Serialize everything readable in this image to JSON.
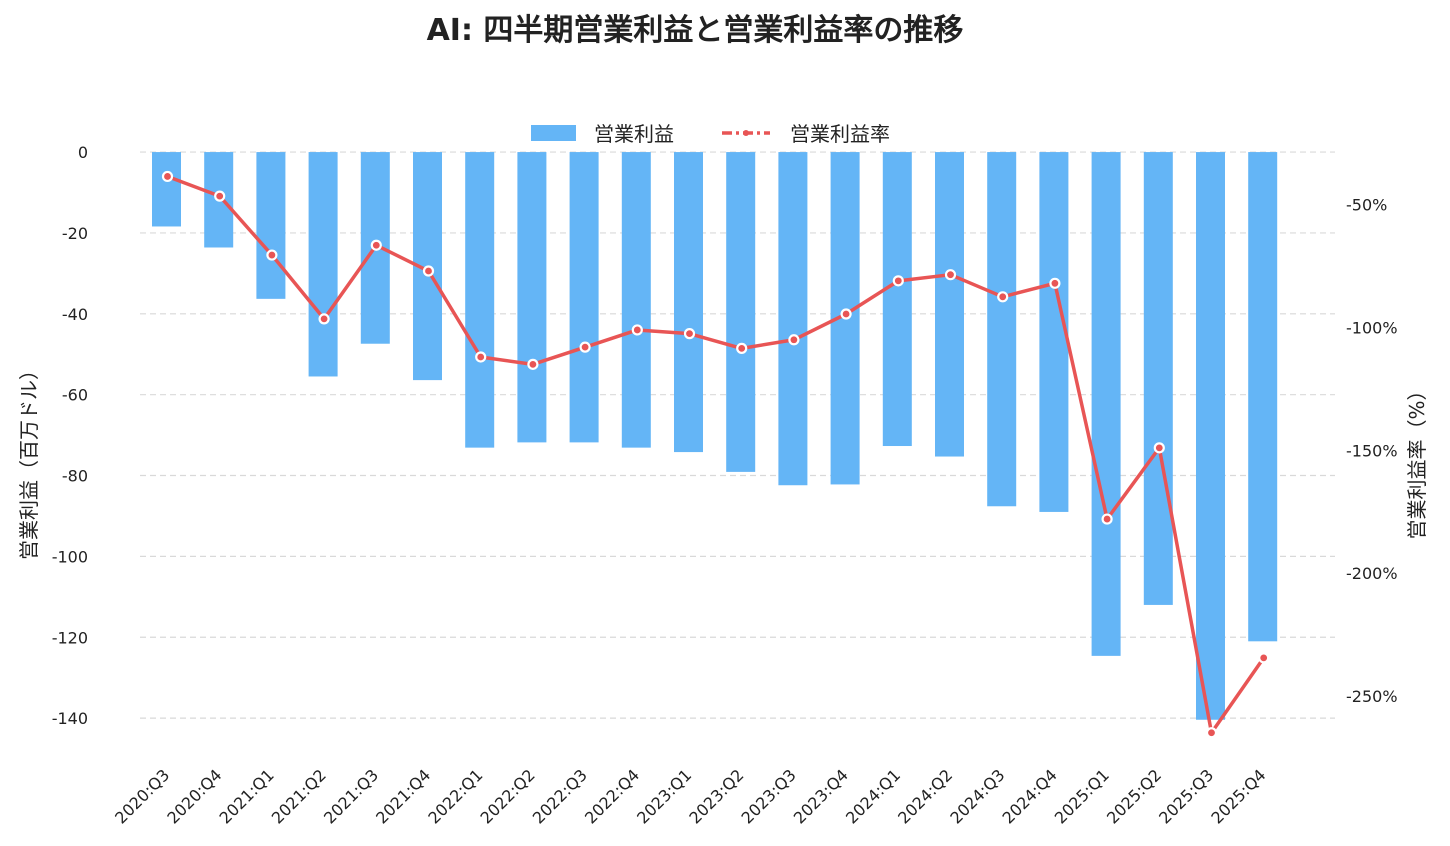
{
  "chart_data": {
    "type": "bar+line",
    "title": "AI: 四半期営業利益と営業利益率の推移",
    "categories": [
      "2020:Q3",
      "2020:Q4",
      "2021:Q1",
      "2021:Q2",
      "2021:Q3",
      "2021:Q4",
      "2022:Q1",
      "2022:Q2",
      "2022:Q3",
      "2022:Q4",
      "2023:Q1",
      "2023:Q2",
      "2023:Q3",
      "2023:Q4",
      "2024:Q1",
      "2024:Q2",
      "2024:Q3",
      "2024:Q4",
      "2025:Q1",
      "2025:Q2",
      "2025:Q3",
      "2025:Q4"
    ],
    "series": [
      {
        "name": "営業利益",
        "type": "bar",
        "axis": "left",
        "color": "#64b5f6",
        "values": [
          -18.4,
          -23.6,
          -36.3,
          -55.5,
          -47.4,
          -56.4,
          -73.1,
          -71.8,
          -71.8,
          -73.1,
          -74.2,
          -79.1,
          -82.4,
          -82.2,
          -72.7,
          -75.3,
          -87.6,
          -89.0,
          -124.6,
          -112.0,
          -140.4,
          -121.0
        ]
      },
      {
        "name": "営業利益率",
        "type": "line",
        "axis": "right",
        "color": "#e85555",
        "values": [
          -38.5,
          -46.5,
          -70.5,
          -96.5,
          -66.5,
          -77.0,
          -112.0,
          -115.0,
          -108.0,
          -101.0,
          -102.5,
          -108.5,
          -105.0,
          -94.5,
          -81.0,
          -78.5,
          -87.5,
          -82.0,
          -178.0,
          -149.0,
          -265.0,
          -234.5
        ]
      }
    ],
    "y_left": {
      "label": "営業利益（百万ドル）",
      "range": [
        -150.6,
        1.5
      ],
      "ticks": [
        0,
        -20,
        -40,
        -60,
        -80,
        -100,
        -120,
        -140
      ]
    },
    "y_right": {
      "label": "営業利益率（%）",
      "range": [
        -276.5,
        -26.1
      ],
      "ticks": [
        -50,
        -100,
        -150,
        -200,
        -250
      ],
      "tick_labels": [
        "-50%",
        "-100%",
        "-150%",
        "-200%",
        "-250%"
      ]
    },
    "grid": true,
    "legend": "top-center"
  }
}
